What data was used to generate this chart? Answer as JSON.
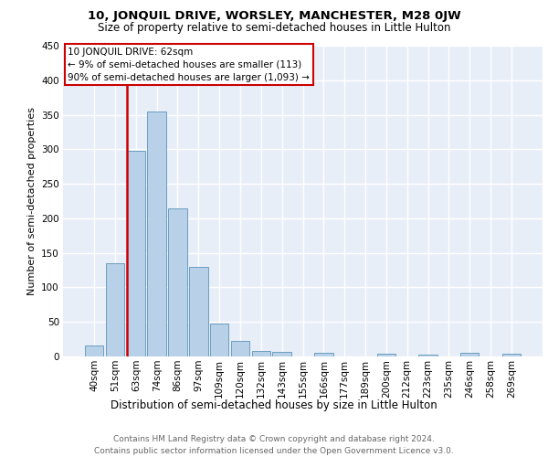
{
  "title1": "10, JONQUIL DRIVE, WORSLEY, MANCHESTER, M28 0JW",
  "title2": "Size of property relative to semi-detached houses in Little Hulton",
  "xlabel": "Distribution of semi-detached houses by size in Little Hulton",
  "ylabel": "Number of semi-detached properties",
  "footer1": "Contains HM Land Registry data © Crown copyright and database right 2024.",
  "footer2": "Contains public sector information licensed under the Open Government Licence v3.0.",
  "categories": [
    "40sqm",
    "51sqm",
    "63sqm",
    "74sqm",
    "86sqm",
    "97sqm",
    "109sqm",
    "120sqm",
    "132sqm",
    "143sqm",
    "155sqm",
    "166sqm",
    "177sqm",
    "189sqm",
    "200sqm",
    "212sqm",
    "223sqm",
    "235sqm",
    "246sqm",
    "258sqm",
    "269sqm"
  ],
  "values": [
    16,
    135,
    298,
    355,
    215,
    130,
    48,
    22,
    8,
    6,
    0,
    5,
    0,
    0,
    4,
    0,
    2,
    0,
    5,
    0,
    4
  ],
  "bar_color": "#b8d0e8",
  "bar_edge_color": "#6a9fc0",
  "highlight_bar_index": 2,
  "highlight_color": "#cc0000",
  "annotation_title": "10 JONQUIL DRIVE: 62sqm",
  "annotation_line1": "← 9% of semi-detached houses are smaller (113)",
  "annotation_line2": "90% of semi-detached houses are larger (1,093) →",
  "annotation_box_color": "#cc0000",
  "ylim": [
    0,
    450
  ],
  "yticks": [
    0,
    50,
    100,
    150,
    200,
    250,
    300,
    350,
    400,
    450
  ],
  "background_color": "#e8eef8",
  "grid_color": "#ffffff",
  "title1_fontsize": 9.5,
  "title2_fontsize": 8.5,
  "xlabel_fontsize": 8.5,
  "ylabel_fontsize": 8,
  "footer_fontsize": 6.5,
  "tick_fontsize": 7.5,
  "annotation_fontsize": 7.5
}
